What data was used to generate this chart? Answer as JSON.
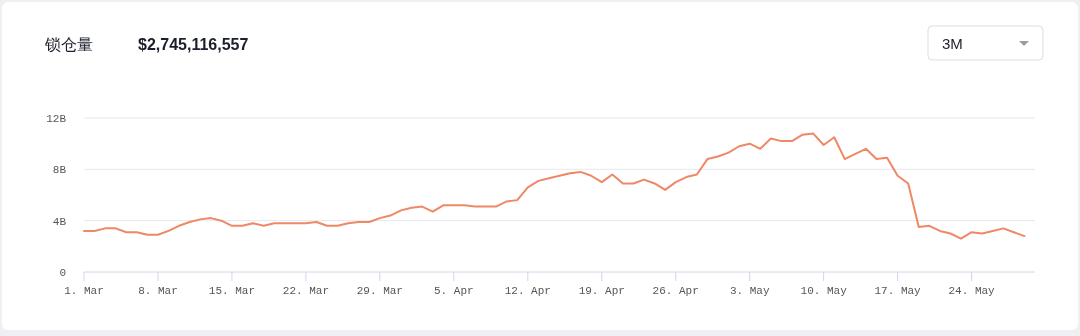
{
  "chart_data": {
    "type": "line",
    "title": "锁仓量",
    "subtitle": "$2,745,116,557",
    "annotations": [
      "3M"
    ],
    "x": [
      "--03-01",
      "--03-02",
      "--03-03",
      "--03-04",
      "--03-05",
      "--03-06",
      "--03-07",
      "--03-08",
      "--03-09",
      "--03-10",
      "--03-11",
      "--03-12",
      "--03-13",
      "--03-14",
      "--03-15",
      "--03-16",
      "--03-17",
      "--03-18",
      "--03-19",
      "--03-20",
      "--03-21",
      "--03-22",
      "--03-23",
      "--03-24",
      "--03-25",
      "--03-26",
      "--03-27",
      "--03-28",
      "--03-29",
      "--03-30",
      "--03-31",
      "--04-01",
      "--04-02",
      "--04-03",
      "--04-04",
      "--04-05",
      "--04-06",
      "--04-07",
      "--04-08",
      "--04-09",
      "--04-10",
      "--04-11",
      "--04-12",
      "--04-13",
      "--04-14",
      "--04-15",
      "--04-16",
      "--04-17",
      "--04-18",
      "--04-19",
      "--04-20",
      "--04-21",
      "--04-22",
      "--04-23",
      "--04-24",
      "--04-25",
      "--04-26",
      "--04-27",
      "--04-28",
      "--04-29",
      "--04-30",
      "--05-01",
      "--05-02",
      "--05-03",
      "--05-04",
      "--05-05",
      "--05-06",
      "--05-07",
      "--05-08",
      "--05-09",
      "--05-10",
      "--05-11",
      "--05-12",
      "--05-13",
      "--05-14",
      "--05-15",
      "--05-16",
      "--05-17",
      "--05-18",
      "--05-19",
      "--05-20",
      "--05-21",
      "--05-22",
      "--05-23",
      "--05-24",
      "--05-25",
      "--05-26",
      "--05-27",
      "--05-28",
      "--05-29"
    ],
    "values": [
      3.2,
      3.2,
      3.4,
      3.4,
      3.1,
      3.1,
      2.9,
      2.9,
      3.2,
      3.6,
      3.9,
      4.1,
      4.2,
      4.0,
      3.6,
      3.6,
      3.8,
      3.6,
      3.8,
      3.8,
      3.8,
      3.8,
      3.9,
      3.6,
      3.6,
      3.8,
      3.9,
      3.9,
      4.2,
      4.4,
      4.8,
      5.0,
      5.1,
      4.7,
      5.2,
      5.2,
      5.2,
      5.1,
      5.1,
      5.1,
      5.5,
      5.6,
      6.6,
      7.1,
      7.3,
      7.5,
      7.7,
      7.8,
      7.5,
      7.0,
      7.6,
      6.9,
      6.9,
      7.2,
      6.9,
      6.4,
      7.0,
      7.4,
      7.6,
      8.8,
      9.0,
      9.3,
      9.8,
      10.0,
      9.6,
      10.4,
      10.2,
      10.2,
      10.7,
      10.8,
      9.9,
      10.5,
      8.8,
      9.2,
      9.6,
      8.8,
      8.9,
      7.5,
      6.9,
      3.5,
      3.6,
      3.2,
      3.0,
      2.6,
      3.1,
      3.0,
      3.2,
      3.4,
      3.1,
      2.8
    ],
    "color": "#ee8866",
    "line_style": "solid",
    "grid": "y",
    "xlim": [
      "--03-01",
      "--05-30"
    ],
    "ylim": [
      0,
      12
    ],
    "xticks": [
      {
        "value": "--03-01",
        "label": "1. Mar"
      },
      {
        "value": "--03-08",
        "label": "8. Mar"
      },
      {
        "value": "--03-15",
        "label": "15. Mar"
      },
      {
        "value": "--03-22",
        "label": "22. Mar"
      },
      {
        "value": "--03-29",
        "label": "29. Mar"
      },
      {
        "value": "--04-05",
        "label": "5. Apr"
      },
      {
        "value": "--04-12",
        "label": "12. Apr"
      },
      {
        "value": "--04-19",
        "label": "19. Apr"
      },
      {
        "value": "--04-26",
        "label": "26. Apr"
      },
      {
        "value": "--05-03",
        "label": "3. May"
      },
      {
        "value": "--05-10",
        "label": "10. May"
      },
      {
        "value": "--05-17",
        "label": "17. May"
      },
      {
        "value": "--05-24",
        "label": "24. May"
      }
    ],
    "yticks": [
      {
        "value": 0,
        "label": "0"
      },
      {
        "value": 4,
        "label": "4B"
      },
      {
        "value": 8,
        "label": "8B"
      },
      {
        "value": 12,
        "label": "12B"
      }
    ]
  }
}
